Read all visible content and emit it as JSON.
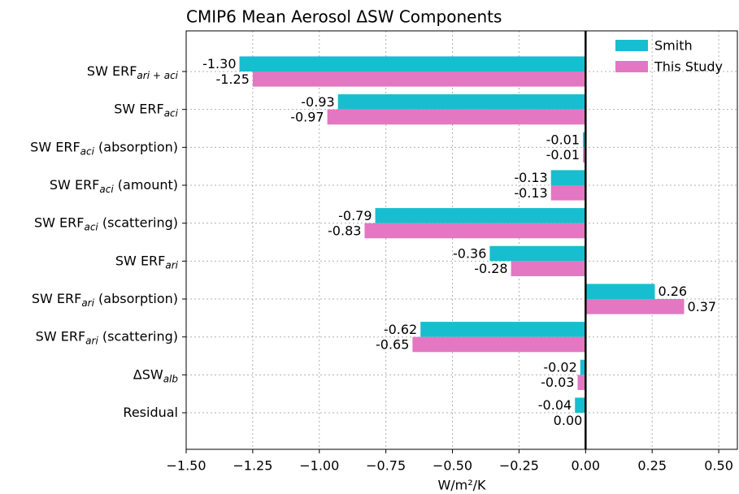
{
  "chart_data": {
    "type": "barh",
    "title": "CMIP6 Mean Aerosol ΔSW Components",
    "xlabel": "W/m²/K",
    "categories": [
      [
        "SW ERF",
        "ari + aci"
      ],
      [
        "SW ERF",
        "aci"
      ],
      [
        "SW ERF",
        "aci",
        " (absorption)"
      ],
      [
        "SW ERF",
        "aci",
        " (amount)"
      ],
      [
        "SW ERF",
        "aci",
        " (scattering)"
      ],
      [
        "SW ERF",
        "ari"
      ],
      [
        "SW ERF",
        "ari",
        " (absorption)"
      ],
      [
        "SW ERF",
        "ari",
        " (scattering)"
      ],
      [
        "ΔSW",
        "alb"
      ],
      [
        "Residual"
      ]
    ],
    "series": [
      {
        "name": "Smith",
        "color": "#17becf",
        "values": [
          -1.3,
          -0.93,
          -0.01,
          -0.13,
          -0.79,
          -0.36,
          0.26,
          -0.62,
          -0.02,
          -0.04
        ],
        "value_labels": [
          "-1.30",
          "-0.93",
          "-0.01",
          "-0.13",
          "-0.79",
          "-0.36",
          "0.26",
          "-0.62",
          "-0.02",
          "-0.04"
        ]
      },
      {
        "name": "This Study",
        "color": "#e377c2",
        "values": [
          -1.25,
          -0.97,
          -0.01,
          -0.13,
          -0.83,
          -0.28,
          0.37,
          -0.65,
          -0.03,
          0
        ],
        "value_labels": [
          "-1.25",
          "-0.97",
          "-0.01",
          "-0.13",
          "-0.83",
          "-0.28",
          "0.37",
          "-0.65",
          "-0.03",
          "0.00"
        ]
      }
    ],
    "xlim": [
      -1.5,
      0.57
    ],
    "xticks": [
      {
        "value": -1.5,
        "label": "−1.50"
      },
      {
        "value": -1.25,
        "label": "−1.25"
      },
      {
        "value": -1.0,
        "label": "−1.00"
      },
      {
        "value": -0.75,
        "label": "−0.75"
      },
      {
        "value": -0.5,
        "label": "−0.50"
      },
      {
        "value": -0.25,
        "label": "−0.25"
      },
      {
        "value": 0,
        "label": "0.00"
      },
      {
        "value": 0.25,
        "label": "0.25"
      },
      {
        "value": 0.5,
        "label": "0.50"
      }
    ],
    "grid": true,
    "legend": "upper right"
  }
}
